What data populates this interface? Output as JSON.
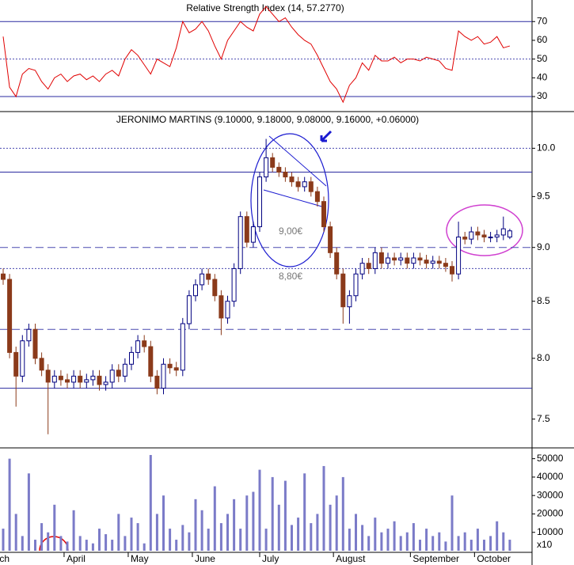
{
  "chart_data": [
    {
      "type": "line",
      "title": "Relative Strength Index (14, 57.2770)",
      "color": "#e00000",
      "values": [
        62,
        35,
        30,
        42,
        45,
        44,
        38,
        34,
        40,
        42,
        38,
        41,
        42,
        39,
        41,
        38,
        42,
        44,
        41,
        50,
        55,
        52,
        47,
        42,
        50,
        48,
        46,
        56,
        70,
        64,
        66,
        70,
        65,
        57,
        50,
        60,
        65,
        70,
        67,
        65,
        74,
        78,
        74,
        70,
        72,
        67,
        63,
        60,
        58,
        52,
        45,
        38,
        34,
        27,
        36,
        40,
        48,
        44,
        52,
        49,
        49,
        51,
        48,
        50,
        50,
        49,
        51,
        50,
        49,
        45,
        44,
        65,
        62,
        60,
        62,
        58,
        59,
        62,
        56,
        57
      ],
      "ylim": [
        22,
        81.5
      ],
      "yticks": [
        30,
        40,
        50,
        60,
        70
      ],
      "hlines": [
        {
          "value": 70,
          "style": "solid"
        },
        {
          "value": 50,
          "style": "dotted"
        },
        {
          "value": 30,
          "style": "solid"
        }
      ]
    },
    {
      "type": "candlestick",
      "title": "JERONIMO MARTINS (9.10000, 9.18000, 9.08000, 9.16000, +0.06000)",
      "log_scale": true,
      "up_color": "#ffffff",
      "down_color": "#8b3a1a",
      "edge_color": "#000080",
      "open": [
        8.75,
        8.7,
        8.05,
        7.85,
        8.15,
        8.25,
        8.0,
        7.9,
        7.8,
        7.85,
        7.82,
        7.8,
        7.85,
        7.8,
        7.82,
        7.85,
        7.78,
        7.8,
        7.9,
        7.85,
        7.95,
        8.05,
        8.15,
        8.1,
        7.85,
        7.75,
        7.95,
        7.92,
        7.9,
        8.3,
        8.55,
        8.65,
        8.75,
        8.7,
        8.55,
        8.35,
        8.5,
        8.8,
        9.3,
        9.05,
        9.2,
        9.7,
        9.9,
        9.8,
        9.75,
        9.7,
        9.65,
        9.6,
        9.65,
        9.55,
        9.45,
        9.2,
        8.95,
        8.75,
        8.45,
        8.55,
        8.75,
        8.85,
        8.8,
        8.95,
        8.85,
        8.9,
        8.88,
        8.9,
        8.85,
        8.9,
        8.88,
        8.85,
        8.87,
        8.85,
        8.82,
        8.75,
        9.1,
        9.08,
        9.15,
        9.12,
        9.1,
        9.1,
        9.12,
        9.1
      ],
      "high": [
        8.8,
        8.75,
        8.1,
        8.2,
        8.3,
        8.3,
        8.05,
        7.95,
        7.9,
        7.9,
        7.87,
        7.9,
        7.9,
        7.87,
        7.9,
        7.9,
        7.85,
        7.95,
        7.95,
        8.0,
        8.1,
        8.2,
        8.2,
        8.15,
        7.9,
        8.0,
        8.0,
        7.97,
        8.35,
        8.6,
        8.7,
        8.8,
        8.8,
        8.75,
        8.6,
        8.55,
        8.85,
        9.35,
        9.35,
        9.25,
        9.75,
        10.1,
        9.95,
        9.85,
        9.8,
        9.75,
        9.7,
        9.7,
        9.7,
        9.6,
        9.5,
        9.25,
        9.0,
        8.8,
        8.6,
        8.8,
        8.9,
        8.9,
        9.0,
        9.0,
        8.95,
        8.95,
        8.95,
        8.95,
        8.95,
        8.95,
        8.93,
        8.92,
        8.92,
        8.9,
        8.87,
        9.25,
        9.15,
        9.2,
        9.2,
        9.17,
        9.15,
        9.17,
        9.3,
        9.18
      ],
      "low": [
        8.65,
        8.0,
        7.6,
        7.8,
        8.1,
        7.95,
        7.85,
        7.38,
        7.75,
        7.77,
        7.75,
        7.75,
        7.75,
        7.75,
        7.77,
        7.73,
        7.73,
        7.75,
        7.8,
        7.8,
        7.9,
        8.0,
        8.05,
        7.8,
        7.7,
        7.7,
        7.87,
        7.85,
        7.85,
        8.25,
        8.5,
        8.6,
        8.65,
        8.5,
        8.2,
        8.3,
        8.45,
        8.75,
        9.0,
        9.0,
        9.15,
        9.65,
        9.75,
        9.7,
        9.65,
        9.6,
        9.55,
        9.55,
        9.5,
        9.4,
        9.15,
        8.9,
        8.7,
        8.3,
        8.3,
        8.5,
        8.7,
        8.75,
        8.75,
        8.8,
        8.8,
        8.83,
        8.83,
        8.8,
        8.8,
        8.83,
        8.8,
        8.8,
        8.8,
        8.77,
        8.68,
        8.7,
        9.03,
        9.03,
        9.07,
        9.05,
        9.05,
        9.05,
        9.07,
        9.08
      ],
      "close": [
        8.7,
        8.05,
        7.85,
        8.15,
        8.25,
        8.0,
        7.9,
        7.8,
        7.85,
        7.82,
        7.8,
        7.85,
        7.8,
        7.82,
        7.85,
        7.78,
        7.8,
        7.9,
        7.85,
        7.95,
        8.05,
        8.15,
        8.1,
        7.85,
        7.75,
        7.95,
        7.92,
        7.9,
        8.3,
        8.55,
        8.65,
        8.75,
        8.7,
        8.55,
        8.35,
        8.5,
        8.8,
        9.3,
        9.05,
        9.2,
        9.7,
        9.9,
        9.8,
        9.75,
        9.7,
        9.65,
        9.6,
        9.65,
        9.55,
        9.45,
        9.2,
        8.95,
        8.75,
        8.45,
        8.55,
        8.75,
        8.85,
        8.8,
        8.95,
        8.85,
        8.9,
        8.88,
        8.9,
        8.85,
        8.9,
        8.88,
        8.85,
        8.87,
        8.85,
        8.82,
        8.75,
        9.1,
        9.08,
        9.15,
        9.12,
        9.1,
        9.1,
        9.12,
        9.18,
        9.16
      ],
      "ylim": [
        7.28,
        10.38
      ],
      "yticks": [
        {
          "value": 7.5,
          "label": "7.5"
        },
        {
          "value": 8,
          "label": "8.0"
        },
        {
          "value": 8.5,
          "label": "8.5"
        },
        {
          "value": 9,
          "label": "9.0"
        },
        {
          "value": 9.5,
          "label": "9.5"
        },
        {
          "value": 10,
          "label": "10.0"
        }
      ],
      "hlines": [
        {
          "value": 10,
          "style": "dotted"
        },
        {
          "value": 9.75,
          "style": "solid"
        },
        {
          "value": 9,
          "style": "dashed"
        },
        {
          "value": 8.8,
          "style": "dotted"
        },
        {
          "value": 8.25,
          "style": "dashed"
        },
        {
          "value": 7.75,
          "style": "solid"
        }
      ],
      "annotations": [
        "9,00€",
        "8,80€"
      ]
    },
    {
      "type": "bar",
      "color": "#7b7bc8",
      "unit_label": "x10",
      "values": [
        12000,
        50000,
        20000,
        8000,
        42000,
        6000,
        15000,
        10000,
        25000,
        8000,
        5000,
        22000,
        8000,
        6000,
        4000,
        12000,
        9000,
        6000,
        20000,
        8000,
        18000,
        15000,
        4000,
        52000,
        20000,
        30000,
        12000,
        6000,
        14000,
        10000,
        28000,
        22000,
        12000,
        35000,
        15000,
        20000,
        28000,
        12000,
        30000,
        32000,
        44000,
        12000,
        40000,
        25000,
        38000,
        14000,
        18000,
        42000,
        15000,
        20000,
        46000,
        25000,
        30000,
        40000,
        12000,
        20000,
        14000,
        8000,
        18000,
        10000,
        12000,
        16000,
        8000,
        10000,
        15000,
        6000,
        12000,
        8000,
        10000,
        5000,
        30000,
        8000,
        10000,
        6000,
        12000,
        6000,
        8000,
        16000,
        10000,
        6000
      ],
      "ylim": [
        0,
        55000
      ],
      "yticks": [
        10000,
        20000,
        30000,
        40000,
        50000
      ],
      "xticks": [
        {
          "value": -3.5,
          "label": "March"
        },
        {
          "value": 9.5,
          "label": "April"
        },
        {
          "value": 19.5,
          "label": "May"
        },
        {
          "value": 29.5,
          "label": "June"
        },
        {
          "value": 40,
          "label": "July"
        },
        {
          "value": 51.5,
          "label": "August"
        },
        {
          "value": 63.5,
          "label": "September"
        },
        {
          "value": 73.5,
          "label": "October"
        }
      ]
    }
  ]
}
